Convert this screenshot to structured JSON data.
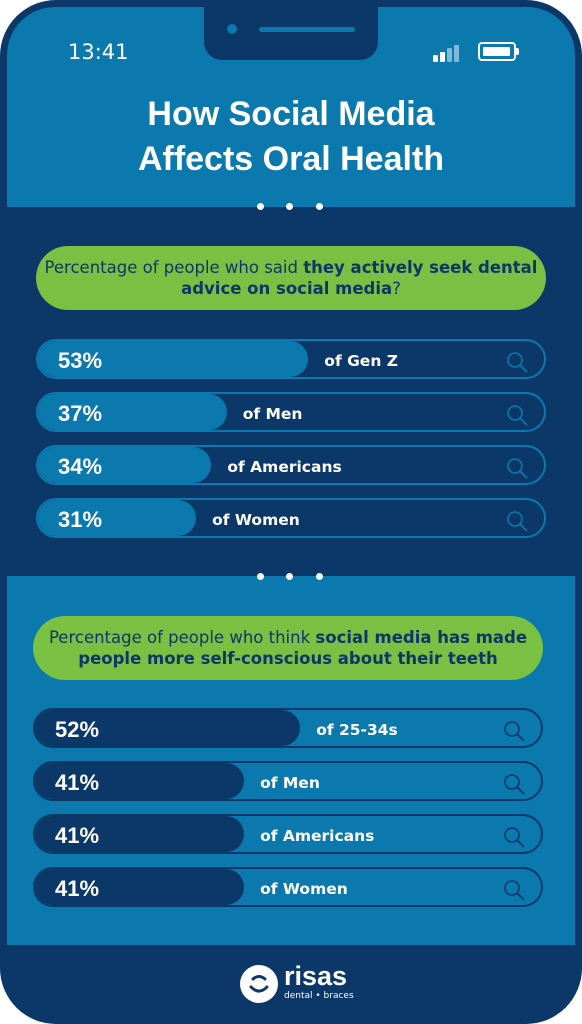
{
  "status_bar": {
    "time": "13:41",
    "signal_bars": 4,
    "battery_level": 0.95
  },
  "title": {
    "line1": "How Social Media",
    "line2": "Affects Oral Health"
  },
  "colors": {
    "background": "#0b3868",
    "screen": "#0b78ae",
    "accent_green": "#7ac143",
    "bar_fill_section1": "#0b78ae",
    "bar_fill_section2": "#0b3868",
    "text": "#ffffff",
    "question_text": "#0b3868"
  },
  "chart_data": [
    {
      "type": "bar",
      "question": {
        "lead": "Percentage of people who said",
        "emphasis": "they actively seek dental advice on social media",
        "end": "?"
      },
      "categories": [
        "of Gen Z",
        "of Men",
        "of Americans",
        "of Women"
      ],
      "values": [
        53,
        37,
        34,
        31
      ],
      "value_labels": [
        "53%",
        "37%",
        "34%",
        "31%"
      ],
      "ylim": [
        0,
        100
      ],
      "orientation": "horizontal",
      "icon": "search-icon"
    },
    {
      "type": "bar",
      "question": {
        "lead": "Percentage of people who think",
        "emphasis": "social media has made people more self-conscious about their teeth",
        "end": ""
      },
      "categories": [
        "of 25-34s",
        "of Men",
        "of Americans",
        "of Women"
      ],
      "values": [
        52,
        41,
        41,
        41
      ],
      "value_labels": [
        "52%",
        "41%",
        "41%",
        "41%"
      ],
      "ylim": [
        0,
        100
      ],
      "orientation": "horizontal",
      "icon": "search-icon"
    }
  ],
  "logo": {
    "name": "risas",
    "tagline": "dental • braces",
    "icon": "smile-logo-icon"
  }
}
